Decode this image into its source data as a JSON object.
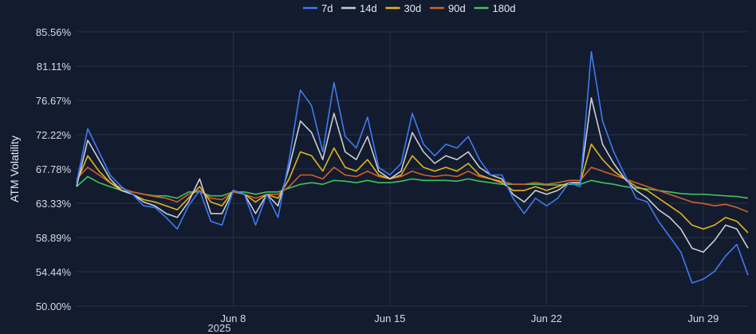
{
  "chart_data": {
    "type": "line",
    "ylabel": "ATM Volatility",
    "xlabel": "",
    "y_ticks": [
      "85.56%",
      "81.11%",
      "76.67%",
      "72.22%",
      "67.78%",
      "63.33%",
      "58.89%",
      "54.44%",
      "50.00%"
    ],
    "ylim": [
      50.0,
      85.56
    ],
    "x_ticks": [
      {
        "label": "Jun 8",
        "day": 8
      },
      {
        "label": "Jun 15",
        "day": 15
      },
      {
        "label": "Jun 22",
        "day": 22
      },
      {
        "label": "Jun 29",
        "day": 29
      }
    ],
    "x_sublabel": "2025",
    "xlim_days": [
      1,
      31
    ],
    "grid": true,
    "legend_position": "top-center",
    "x": [
      1,
      1.5,
      2,
      2.5,
      3,
      3.5,
      4,
      4.5,
      5,
      5.5,
      6,
      6.5,
      7,
      7.5,
      8,
      8.5,
      9,
      9.5,
      10,
      10.5,
      11,
      11.5,
      12,
      12.5,
      13,
      13.5,
      14,
      14.5,
      15,
      15.5,
      16,
      16.5,
      17,
      17.5,
      18,
      18.5,
      19,
      19.5,
      20,
      20.5,
      21,
      21.5,
      22,
      22.5,
      23,
      23.5,
      24,
      24.5,
      25,
      25.5,
      26,
      26.5,
      27,
      27.5,
      28,
      28.5,
      29,
      29.5,
      30,
      30.5,
      31
    ],
    "series": [
      {
        "name": "7d",
        "color": "#3d7bf0",
        "values": [
          66.0,
          73.0,
          70.0,
          67.0,
          65.5,
          64.5,
          63.0,
          62.8,
          61.5,
          60.0,
          63.0,
          65.0,
          61.0,
          60.5,
          65.0,
          64.5,
          60.5,
          64.5,
          61.5,
          69.0,
          78.0,
          76.0,
          70.0,
          79.0,
          72.0,
          70.5,
          74.5,
          68.0,
          67.0,
          68.5,
          75.0,
          71.0,
          69.5,
          71.0,
          70.5,
          72.0,
          69.0,
          67.0,
          67.0,
          64.0,
          62.0,
          64.0,
          63.0,
          64.0,
          66.0,
          65.5,
          83.0,
          74.0,
          70.0,
          67.0,
          64.0,
          63.5,
          61.0,
          59.0,
          57.0,
          53.0,
          53.5,
          54.5,
          56.5,
          58.0,
          54.0
        ]
      },
      {
        "name": "14d",
        "color": "#c9ced6",
        "values": [
          65.5,
          71.5,
          69.0,
          66.5,
          65.0,
          64.5,
          63.5,
          63.0,
          62.0,
          61.5,
          63.5,
          66.5,
          62.0,
          62.0,
          65.0,
          64.5,
          62.0,
          64.5,
          63.0,
          68.0,
          74.0,
          72.5,
          69.0,
          75.0,
          70.0,
          69.0,
          72.0,
          67.5,
          66.5,
          67.5,
          72.5,
          70.0,
          68.5,
          69.5,
          69.0,
          70.0,
          68.0,
          67.0,
          66.5,
          64.5,
          63.5,
          65.0,
          64.5,
          65.0,
          66.0,
          66.0,
          77.0,
          71.0,
          68.5,
          66.5,
          65.0,
          64.0,
          62.5,
          61.5,
          60.0,
          57.5,
          57.0,
          58.5,
          60.5,
          60.0,
          57.5
        ]
      },
      {
        "name": "30d",
        "color": "#e5b51c",
        "values": [
          66.0,
          69.5,
          67.5,
          66.0,
          65.0,
          64.5,
          63.8,
          63.5,
          63.0,
          62.5,
          64.0,
          65.5,
          63.5,
          63.0,
          65.0,
          64.5,
          63.5,
          64.5,
          64.0,
          66.5,
          70.0,
          69.5,
          67.5,
          70.5,
          68.0,
          67.5,
          69.0,
          67.0,
          66.5,
          67.0,
          69.5,
          68.0,
          67.5,
          68.0,
          67.5,
          68.5,
          67.0,
          66.5,
          66.0,
          65.0,
          65.0,
          65.5,
          65.0,
          65.5,
          66.0,
          66.0,
          71.0,
          69.0,
          67.5,
          66.5,
          65.5,
          65.0,
          64.0,
          63.0,
          62.0,
          60.5,
          60.0,
          60.5,
          61.5,
          61.0,
          59.5
        ]
      },
      {
        "name": "90d",
        "color": "#d3602a",
        "values": [
          66.5,
          68.0,
          67.0,
          66.0,
          65.3,
          64.8,
          64.5,
          64.2,
          64.0,
          63.5,
          64.5,
          65.0,
          64.0,
          63.8,
          64.8,
          64.5,
          64.0,
          64.5,
          64.5,
          65.5,
          67.0,
          67.0,
          66.5,
          68.0,
          67.0,
          66.8,
          67.5,
          66.8,
          66.5,
          66.8,
          67.5,
          67.0,
          66.8,
          67.0,
          66.8,
          67.5,
          66.8,
          66.5,
          66.2,
          65.8,
          65.8,
          66.0,
          65.8,
          66.0,
          66.3,
          66.3,
          68.0,
          67.5,
          67.0,
          66.5,
          66.0,
          65.5,
          65.0,
          64.5,
          64.0,
          63.5,
          63.3,
          63.0,
          63.2,
          62.8,
          62.2
        ]
      },
      {
        "name": "180d",
        "color": "#3fc25e",
        "values": [
          65.5,
          66.8,
          66.0,
          65.5,
          65.0,
          64.8,
          64.5,
          64.3,
          64.3,
          64.0,
          64.8,
          64.8,
          64.3,
          64.3,
          64.8,
          64.8,
          64.5,
          64.8,
          64.8,
          65.3,
          65.8,
          66.0,
          65.8,
          66.3,
          66.2,
          66.0,
          66.3,
          66.0,
          66.0,
          66.2,
          66.5,
          66.3,
          66.3,
          66.3,
          66.2,
          66.5,
          66.2,
          66.0,
          65.8,
          65.8,
          65.8,
          65.8,
          65.7,
          65.7,
          65.8,
          65.8,
          66.3,
          66.0,
          65.8,
          65.5,
          65.3,
          65.2,
          65.0,
          64.8,
          64.6,
          64.5,
          64.5,
          64.4,
          64.3,
          64.2,
          64.0
        ]
      }
    ]
  }
}
